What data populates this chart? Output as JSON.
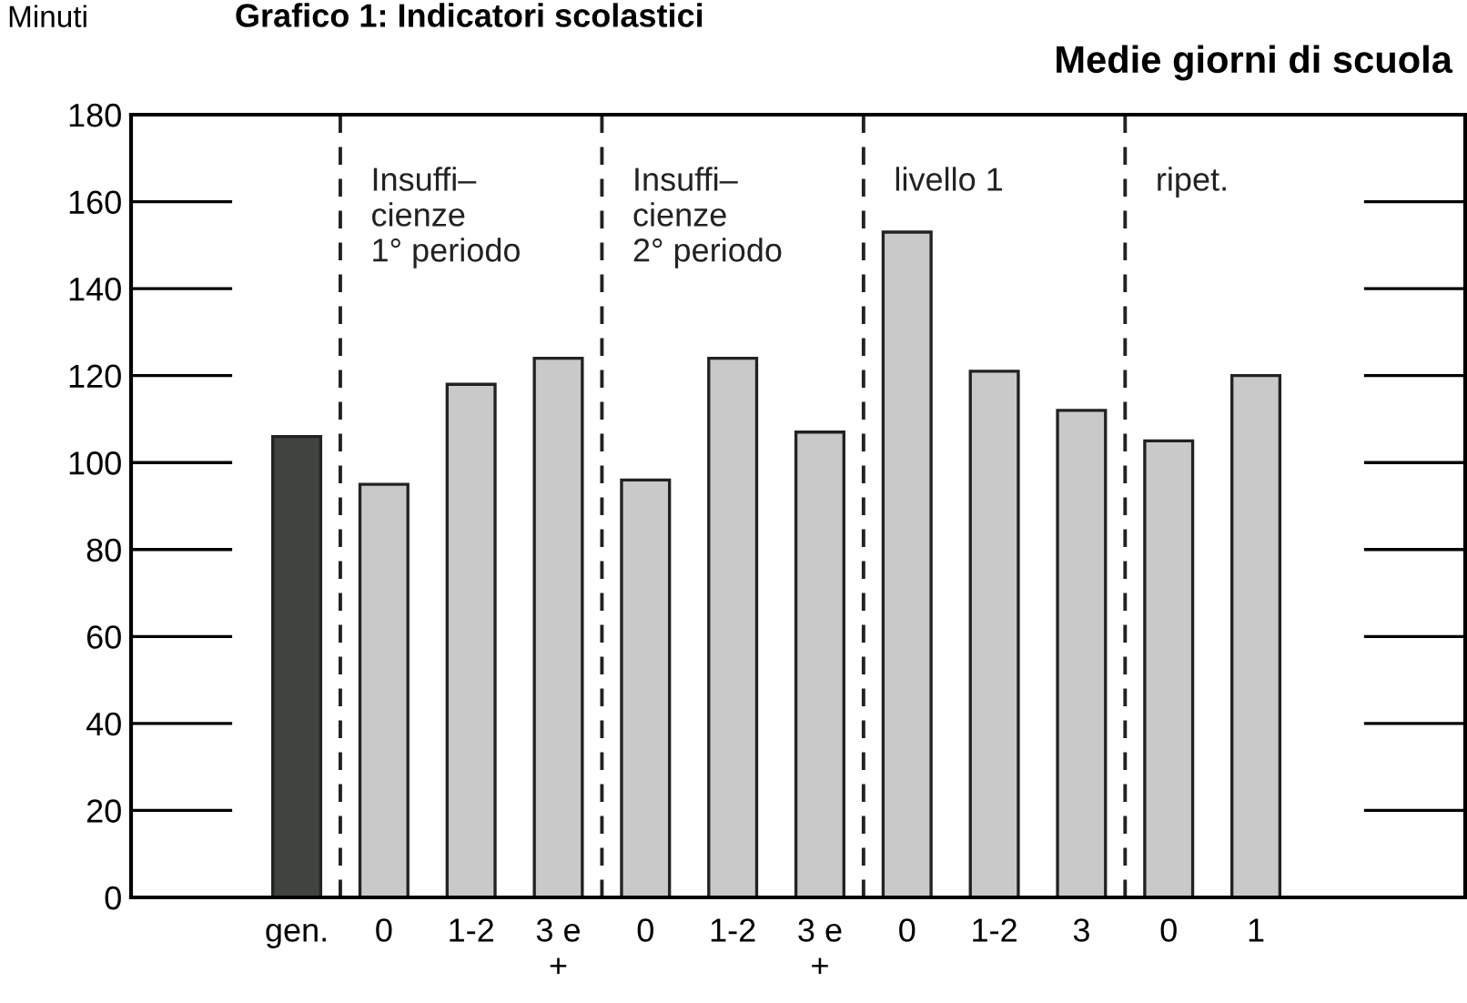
{
  "chart_data": {
    "type": "bar",
    "title": "Grafico 1: Indicatori scolastici",
    "subtitle": "Medie giorni di scuola",
    "ylabel": "Minuti",
    "categories": [
      "gen.",
      "0",
      "1-2",
      "3 e\n+",
      "0",
      "1-2",
      "3 e\n+",
      "0",
      "1-2",
      "3",
      "0",
      "1"
    ],
    "values": [
      106,
      95,
      118,
      124,
      96,
      124,
      107,
      153,
      121,
      112,
      105,
      120
    ],
    "colors": [
      "#3f443f",
      "#c9c9c9",
      "#c9c9c9",
      "#c9c9c9",
      "#c9c9c9",
      "#c9c9c9",
      "#c9c9c9",
      "#c9c9c9",
      "#c9c9c9",
      "#c9c9c9",
      "#c9c9c9",
      "#c9c9c9"
    ],
    "ylim": [
      0,
      180
    ],
    "yticks": [
      0,
      20,
      40,
      60,
      80,
      100,
      120,
      140,
      160,
      180
    ],
    "grid": false,
    "annotations": [
      "Insuffi–\ncienze\n1° periodo",
      "Insuffi–\ncienze\n2° periodo",
      "livello 1",
      "ripet."
    ]
  }
}
